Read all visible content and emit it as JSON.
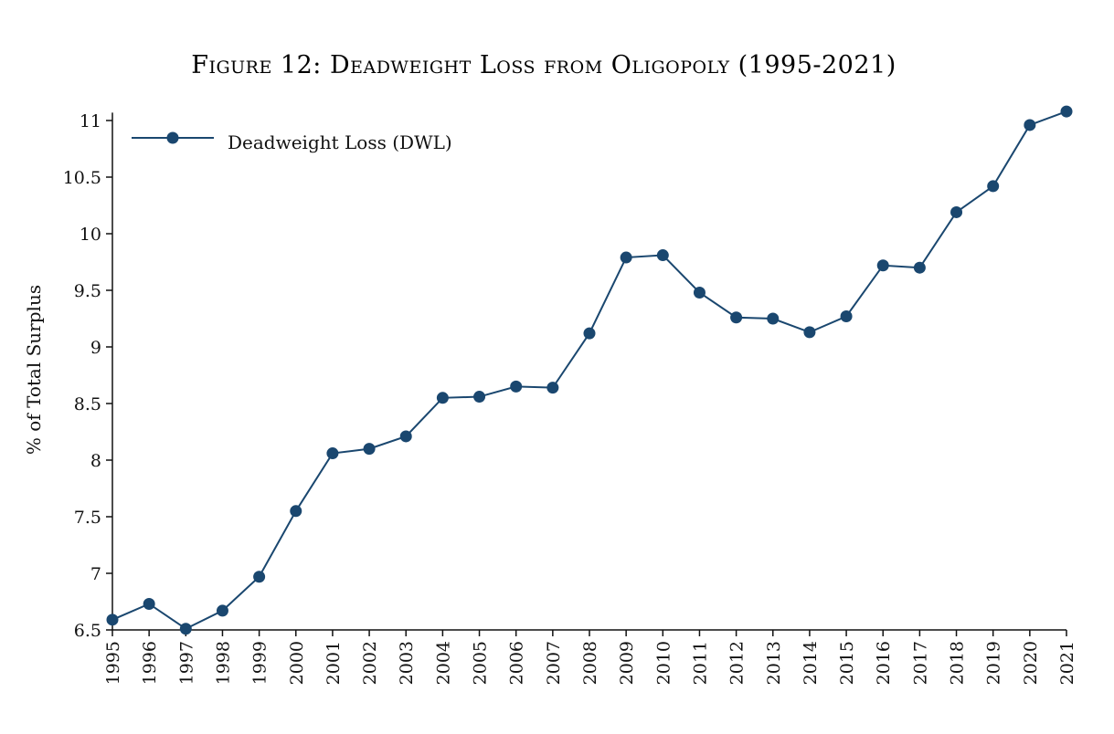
{
  "chart_data": {
    "type": "line",
    "title": "Figure 12: Deadweight Loss from Oligopoly (1995-2021)",
    "xlabel": "",
    "ylabel": "% of Total Surplus",
    "x": [
      1995,
      1996,
      1997,
      1998,
      1999,
      2000,
      2001,
      2002,
      2003,
      2004,
      2005,
      2006,
      2007,
      2008,
      2009,
      2010,
      2011,
      2012,
      2013,
      2014,
      2015,
      2016,
      2017,
      2018,
      2019,
      2020,
      2021
    ],
    "series": [
      {
        "name": "Deadweight Loss (DWL)",
        "color": "#1a476f",
        "marker": "circle",
        "values": [
          6.59,
          6.73,
          6.51,
          6.67,
          6.97,
          7.55,
          8.06,
          8.1,
          8.21,
          8.55,
          8.56,
          8.65,
          8.64,
          9.12,
          9.79,
          9.81,
          9.48,
          9.26,
          9.25,
          9.13,
          9.27,
          9.72,
          9.7,
          10.19,
          10.42,
          10.96,
          11.08
        ]
      }
    ],
    "xticks": [
      "1995",
      "1996",
      "1997",
      "1998",
      "1999",
      "2000",
      "2001",
      "2002",
      "2003",
      "2004",
      "2005",
      "2006",
      "2007",
      "2008",
      "2009",
      "2010",
      "2011",
      "2012",
      "2013",
      "2014",
      "2015",
      "2016",
      "2017",
      "2018",
      "2019",
      "2020",
      "2021"
    ],
    "yticks": [
      6.5,
      7,
      7.5,
      8,
      8.5,
      9,
      9.5,
      10,
      10.5,
      11
    ],
    "ytick_labels": [
      "6.5",
      "7",
      "7.5",
      "8",
      "8.5",
      "9",
      "9.5",
      "10",
      "10.5",
      "11"
    ],
    "xlim": [
      1995,
      2021
    ],
    "ylim": [
      6.5,
      11.07
    ],
    "grid": false,
    "legend": {
      "position": "top-left",
      "entries": [
        "Deadweight Loss (DWL)"
      ]
    },
    "xtick_rotation": "vertical"
  }
}
